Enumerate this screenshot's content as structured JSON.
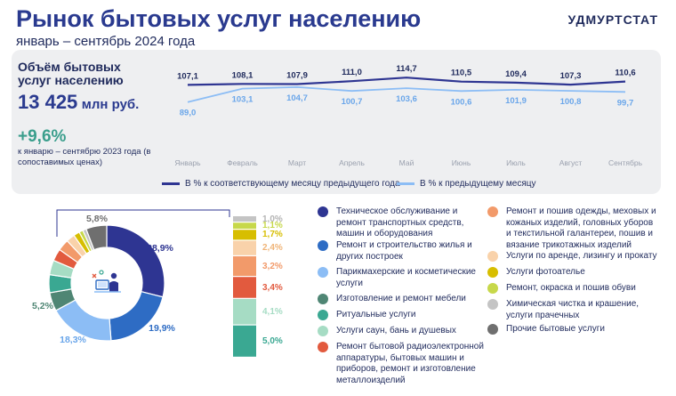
{
  "header": {
    "title": "Рынок бытовых услуг населению",
    "subtitle": "январь – сентябрь 2024 года",
    "brand": "УДМУРТСТАТ"
  },
  "summary": {
    "volume_label": "Объём бытовых услуг населению",
    "volume_value": "13 425",
    "volume_unit": "млн руб.",
    "growth": "+9,6%",
    "growth_note": "к январю – сентябрю 2023 года (в сопоставимых ценах)"
  },
  "chart_data": [
    {
      "type": "line",
      "categories": [
        "Январь",
        "Февраль",
        "Март",
        "Апрель",
        "Май",
        "Июнь",
        "Июль",
        "Август",
        "Сентябрь"
      ],
      "series": [
        {
          "name": "В % к соответствующему месяцу предыдущего года",
          "color": "#2e3592",
          "values": [
            107.1,
            108.1,
            107.9,
            111.0,
            114.7,
            110.5,
            109.4,
            107.3,
            110.6
          ],
          "labels": [
            "107,1",
            "108,1",
            "107,9",
            "111,0",
            "114,7",
            "110,5",
            "109,4",
            "107,3",
            "110,6"
          ]
        },
        {
          "name": "В % к предыдущему месяцу",
          "color": "#8cbdf5",
          "values": [
            89.0,
            103.1,
            104.7,
            100.7,
            103.6,
            100.6,
            101.9,
            100.8,
            99.7
          ],
          "labels": [
            "89,0",
            "103,1",
            "104,7",
            "100,7",
            "103,6",
            "100,6",
            "101,9",
            "100,8",
            "99,7"
          ]
        }
      ]
    },
    {
      "type": "pie",
      "categories": [
        "Техническое обслуживание и ремонт транспортных средств, машин и оборудования",
        "Ремонт и строительство жилья и других построек",
        "Парикмахерские и косметические услуги",
        "Изготовление и ремонт мебели",
        "Ритуальные услуги",
        "Услуги саун, бань и душевых",
        "Ремонт бытовой радиоэлектронной аппаратуры, бытовых машин и приборов, ремонт и изготовление металлоизделий",
        "Ремонт и пошив одежды, меховых и кожаных изделий, головных уборов и текстильной галантереи, пошив и вязание трикотажных изделий",
        "Услуги по аренде, лизингу и прокату",
        "Услуги фотоателье",
        "Ремонт, окраска и пошив обуви",
        "Химическая чистка и крашение, услуги прачечных",
        "Прочие бытовые услуги"
      ],
      "values": [
        28.9,
        19.9,
        18.3,
        5.2,
        5.0,
        4.1,
        3.4,
        3.2,
        2.4,
        1.7,
        1.1,
        1.0,
        5.8
      ],
      "labels": [
        "28,9%",
        "19,9%",
        "18,3%",
        "5,2%",
        "5,0%",
        "4,1%",
        "3,4%",
        "3,2%",
        "2,4%",
        "1,7%",
        "1,1%",
        "1,0%",
        "5,8%"
      ],
      "colors": [
        "#2e3592",
        "#2e6cc4",
        "#8cbdf5",
        "#4f8674",
        "#3aa892",
        "#a6dcc4",
        "#e25a3e",
        "#f29a6a",
        "#f9d2aa",
        "#d7be00",
        "#c7d84a",
        "#c4c4c4",
        "#6f6f6f"
      ]
    }
  ]
}
